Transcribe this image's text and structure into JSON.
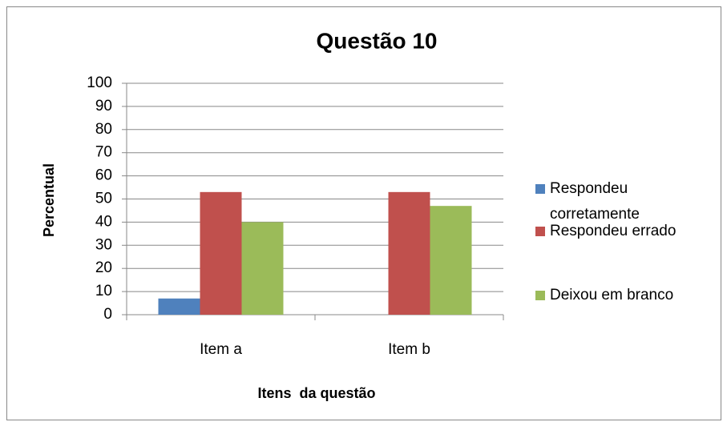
{
  "chart_data": {
    "type": "bar",
    "title": "Questão 10",
    "x_label": "Itens  da questão",
    "y_label": "Percentual",
    "categories": [
      "Item a",
      "Item b"
    ],
    "series": [
      {
        "name": "Respondeu corretamente",
        "color": "#4f81bd",
        "values": [
          7,
          0
        ]
      },
      {
        "name": "Respondeu errado",
        "color": "#c0504d",
        "values": [
          53,
          53
        ]
      },
      {
        "name": "Deixou em branco",
        "color": "#9bbb59",
        "values": [
          40,
          47
        ]
      }
    ],
    "ylim": [
      0,
      100
    ],
    "yticks": [
      0,
      10,
      20,
      30,
      40,
      50,
      60,
      70,
      80,
      90,
      100
    ],
    "grid": true,
    "legend": "right"
  }
}
